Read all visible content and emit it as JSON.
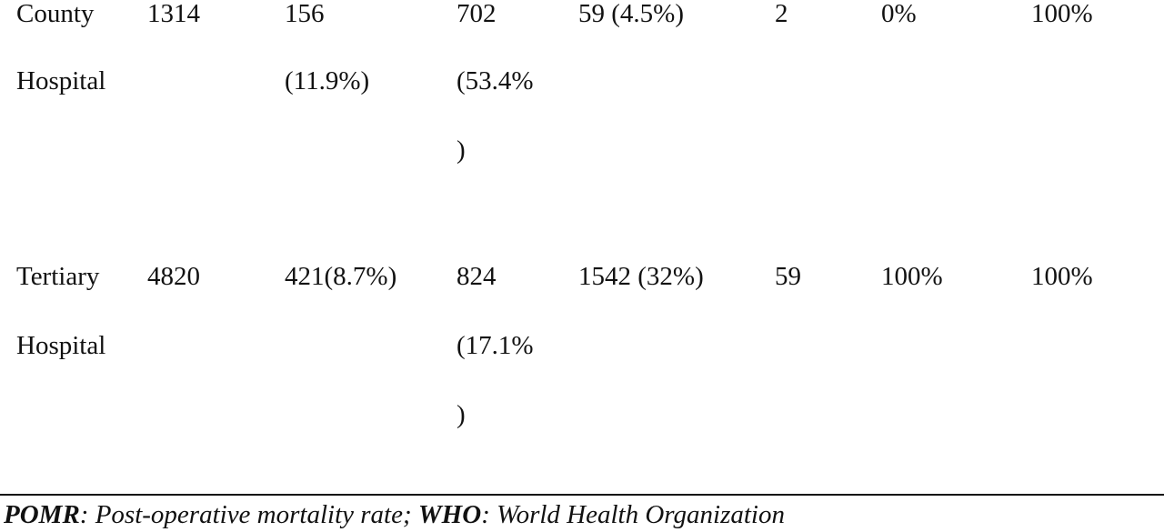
{
  "table": {
    "rows": [
      {
        "label_line1": "County",
        "label_line2": "Hospital",
        "c1": "1314",
        "c2_line1": "156",
        "c2_line2": "(11.9%)",
        "c3_line1": "702",
        "c3_line2": "(53.4%",
        "c3_line3": ")",
        "c4": "59 (4.5%)",
        "c5": "2",
        "c6": "0%",
        "c7": "100%"
      },
      {
        "label_line1": "Tertiary",
        "label_line2": "Hospital",
        "c1": "4820",
        "c2_line1": "421(8.7%)",
        "c3_line1": "824",
        "c3_line2": "(17.1%",
        "c3_line3": ")",
        "c4": "1542 (32%)",
        "c5": "59",
        "c6": "100%",
        "c7": "100%"
      }
    ]
  },
  "footnote": {
    "abbr1": "POMR",
    "def1": ": Post-operative mortality rate; ",
    "abbr2": "WHO",
    "def2": ": World Health Organization"
  }
}
